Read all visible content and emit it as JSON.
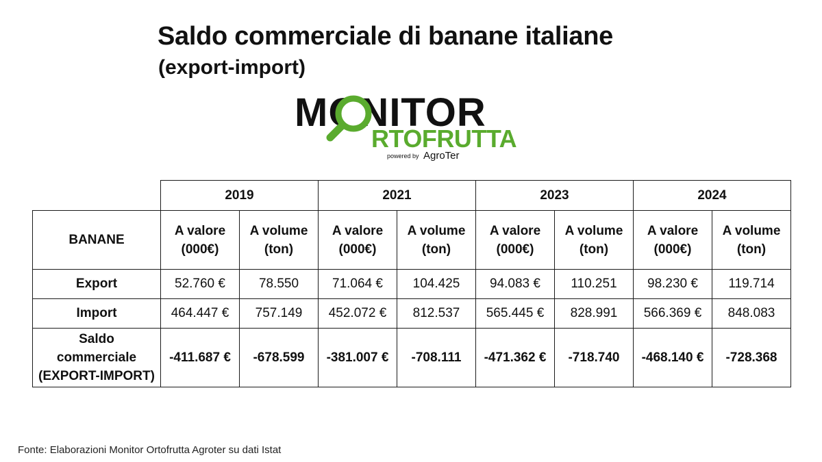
{
  "title": "Saldo commerciale di banane italiane",
  "subtitle": "(export-import)",
  "logo": {
    "word1": "MONITOR",
    "word2": "RTOFRUTTA",
    "powered": "powered by",
    "brand": "AgroTer",
    "colors": {
      "dark": "#111111",
      "green": "#5aab2e"
    },
    "icon": "magnifier-icon"
  },
  "table": {
    "row_header": "BANANE",
    "years": [
      "2019",
      "2021",
      "2023",
      "2024"
    ],
    "sub_headers": {
      "valore_line1": "A valore",
      "valore_line2": "(000€)",
      "volume_line1": "A volume",
      "volume_line2": "(ton)"
    },
    "rows": [
      {
        "label": "Export",
        "values": [
          "52.760 €",
          "78.550",
          "71.064 €",
          "104.425",
          "94.083 €",
          "110.251",
          "98.230 €",
          "119.714"
        ]
      },
      {
        "label": "Import",
        "values": [
          "464.447 €",
          "757.149",
          "452.072 €",
          "812.537",
          "565.445 €",
          "828.991",
          "566.369 €",
          "848.083"
        ]
      }
    ],
    "saldo": {
      "label_line1": "Saldo",
      "label_line2": "commerciale",
      "label_line3": "(EXPORT-IMPORT)",
      "values": [
        "-411.687 €",
        "-678.599",
        "-381.007 €",
        "-708.111",
        "-471.362 €",
        "-718.740",
        "-468.140 €",
        "-728.368"
      ],
      "color": "#c00000"
    }
  },
  "source": "Fonte: Elaborazioni Monitor Ortofrutta Agroter su dati Istat"
}
